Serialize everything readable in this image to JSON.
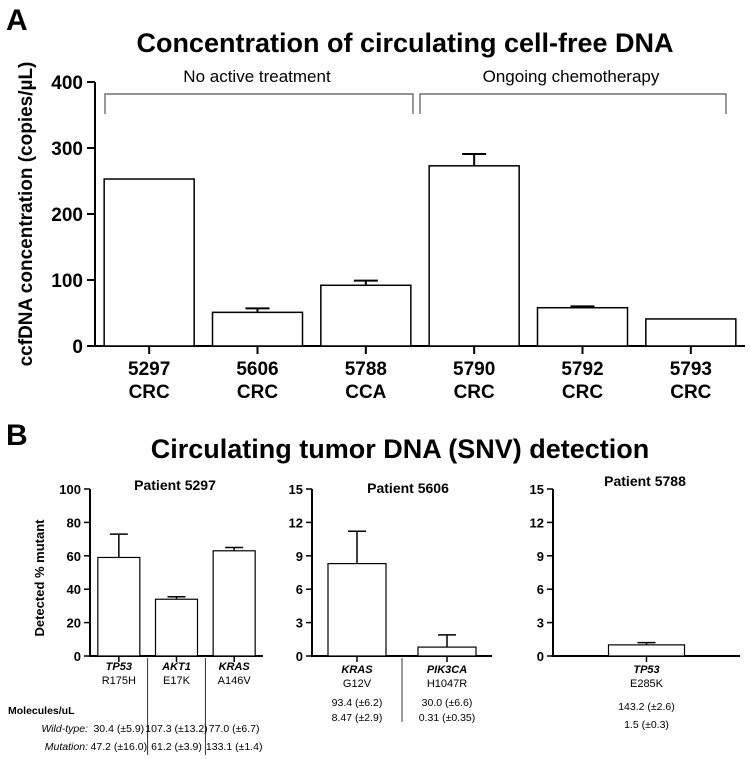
{
  "panel_a": {
    "label": "A",
    "title": "Concentration of circulating cell-free DNA",
    "ylabel": "ccfDNA concentration (copies/µL)",
    "bracket_left": "No active treatment",
    "bracket_right": "Ongoing chemotherapy"
  },
  "panel_b": {
    "label": "B",
    "title": "Circulating tumor DNA (SNV) detection",
    "ylabel": "Detected % mutant",
    "row_labels": {
      "header": "Molecules/uL",
      "wildtype": "Wild-type:",
      "mutation": "Mutation:"
    },
    "table_5297": [
      {
        "wt": "30.4 (±5.9)",
        "mut": "47.2 (±16.0)"
      },
      {
        "wt": "107.3 (±13.2)",
        "mut": "61.2 (±3.9)"
      },
      {
        "wt": "77.0 (±6.7)",
        "mut": "133.1 (±1.4)"
      }
    ],
    "table_5606": [
      {
        "wt": "93.4 (±6.2)",
        "mut": "8.47 (±2.9)"
      },
      {
        "wt": "30.0 (±6.6)",
        "mut": "0.31 (±0.35)"
      }
    ],
    "table_5788": [
      {
        "wt": "143.2 (±2.6)",
        "mut": "1.5 (±0.3)"
      }
    ]
  },
  "chart_data": [
    {
      "type": "bar",
      "id": "ccfdna",
      "title": "Concentration of circulating cell-free DNA",
      "ylabel": "ccfDNA concentration (copies/µL)",
      "categories": [
        {
          "id": "5297",
          "type": "CRC"
        },
        {
          "id": "5606",
          "type": "CRC"
        },
        {
          "id": "5788",
          "type": "CCA"
        },
        {
          "id": "5790",
          "type": "CRC"
        },
        {
          "id": "5792",
          "type": "CRC"
        },
        {
          "id": "5793",
          "type": "CRC"
        }
      ],
      "values": [
        253,
        51,
        92,
        273,
        58,
        41
      ],
      "error": [
        0,
        6,
        7,
        18,
        2,
        0
      ],
      "ylim": [
        0,
        400
      ],
      "yticks": [
        0,
        100,
        200,
        300,
        400
      ],
      "groups": [
        {
          "label": "No active treatment",
          "categories": [
            "5297",
            "5606",
            "5788"
          ]
        },
        {
          "label": "Ongoing chemotherapy",
          "categories": [
            "5790",
            "5792",
            "5793"
          ]
        }
      ]
    },
    {
      "type": "bar",
      "id": "p5297",
      "title": "Patient 5297",
      "ylabel": "Detected % mutant",
      "categories": [
        {
          "gene": "TP53",
          "mutation": "R175H"
        },
        {
          "gene": "AKT1",
          "mutation": "E17K"
        },
        {
          "gene": "KRAS",
          "mutation": "A146V"
        }
      ],
      "values": [
        59,
        34,
        63
      ],
      "error": [
        14,
        1.5,
        2
      ],
      "ylim": [
        0,
        100
      ],
      "yticks": [
        0,
        20,
        40,
        60,
        80,
        100
      ]
    },
    {
      "type": "bar",
      "id": "p5606",
      "title": "Patient 5606",
      "categories": [
        {
          "gene": "KRAS",
          "mutation": "G12V"
        },
        {
          "gene": "PIK3CA",
          "mutation": "H1047R"
        }
      ],
      "values": [
        8.3,
        0.8
      ],
      "error": [
        2.9,
        1.1
      ],
      "ylim": [
        0,
        15
      ],
      "yticks": [
        0,
        3,
        6,
        9,
        12,
        15
      ]
    },
    {
      "type": "bar",
      "id": "p5788",
      "title": "Patient 5788",
      "categories": [
        {
          "gene": "TP53",
          "mutation": "E285K"
        }
      ],
      "values": [
        1.0
      ],
      "error": [
        0.2
      ],
      "ylim": [
        0,
        15
      ],
      "yticks": [
        0,
        3,
        6,
        9,
        12,
        15
      ]
    }
  ]
}
